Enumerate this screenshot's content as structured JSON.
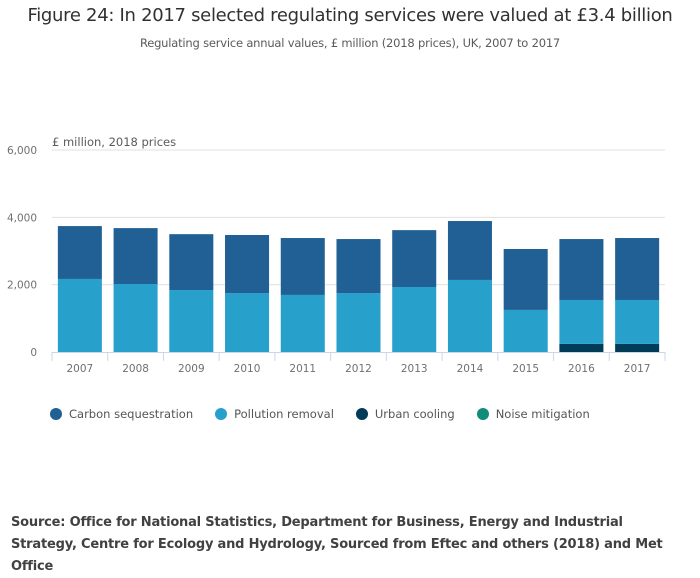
{
  "header": {
    "title": "Figure 24: In 2017 selected regulating services were valued at £3.4 billion",
    "subtitle": "Regulating service annual values, £ million (2018 prices), UK, 2007 to 2017"
  },
  "chart_data": {
    "type": "bar",
    "stacked": true,
    "title": "Figure 24: In 2017 selected regulating services were valued at £3.4 billion",
    "subtitle": "Regulating service annual values, £ million (2018 prices), UK, 2007 to 2017",
    "ylabel": "£ million, 2018 prices",
    "xlabel": "",
    "ylim": [
      0,
      6000
    ],
    "yticks": [
      0,
      2000,
      4000,
      6000
    ],
    "ytick_labels": [
      "0",
      "2,000",
      "4,000",
      "6,000"
    ],
    "grid": true,
    "legend_position": "bottom-left",
    "categories": [
      "2007",
      "2008",
      "2009",
      "2010",
      "2011",
      "2012",
      "2013",
      "2014",
      "2015",
      "2016",
      "2017"
    ],
    "series": [
      {
        "name": "Noise mitigation",
        "color": "#118c7b",
        "values": [
          0,
          0,
          0,
          0,
          0,
          0,
          0,
          0,
          0,
          0,
          0
        ]
      },
      {
        "name": "Urban cooling",
        "color": "#003c57",
        "values": [
          0,
          0,
          0,
          0,
          0,
          0,
          0,
          0,
          0,
          240,
          240
        ]
      },
      {
        "name": "Pollution removal",
        "color": "#27a0cc",
        "values": [
          2170,
          2020,
          1840,
          1750,
          1695,
          1750,
          1930,
          2140,
          1250,
          1305,
          1305
        ]
      },
      {
        "name": "Carbon sequestration",
        "color": "#206095",
        "values": [
          1570,
          1660,
          1660,
          1725,
          1690,
          1605,
          1690,
          1750,
          1810,
          1810,
          1840
        ]
      }
    ]
  },
  "legend": [
    {
      "label": "Carbon sequestration",
      "color": "#206095"
    },
    {
      "label": "Pollution removal",
      "color": "#27a0cc"
    },
    {
      "label": "Urban cooling",
      "color": "#003c57"
    },
    {
      "label": "Noise mitigation",
      "color": "#118c7b"
    }
  ],
  "source": "Source: Office for National Statistics, Department for Business, Energy and Industrial Strategy, Centre for Ecology and Hydrology, Sourced from Eftec and others (2018) and Met Office"
}
